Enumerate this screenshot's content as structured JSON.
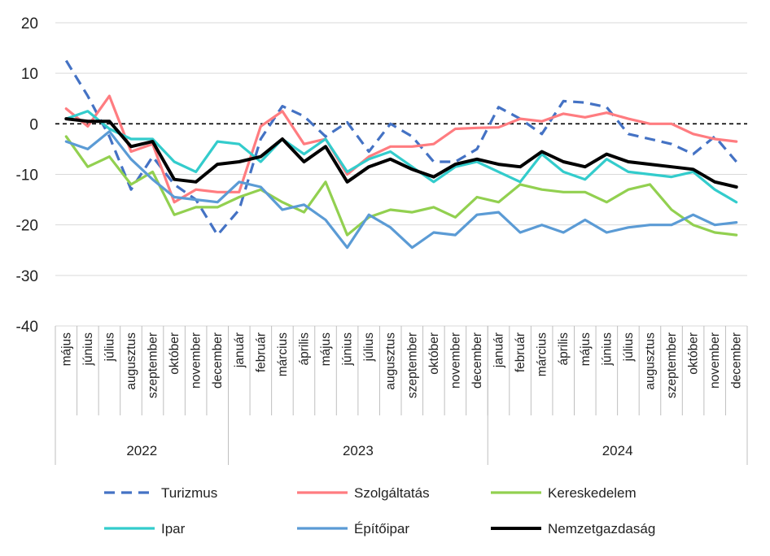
{
  "chart_data": {
    "type": "line",
    "title": "",
    "xlabel": "",
    "ylabel": "",
    "ylim": [
      -40,
      20
    ],
    "yticks": [
      "20",
      "10",
      "0",
      "-10",
      "-20",
      "-30",
      "-40"
    ],
    "grid": "horizontal",
    "reference_line": 0,
    "legend_position": "bottom",
    "categories": [
      "május",
      "június",
      "július",
      "augusztus",
      "szeptember",
      "október",
      "november",
      "december",
      "január",
      "február",
      "március",
      "április",
      "május",
      "június",
      "július",
      "augusztus",
      "szeptember",
      "október",
      "november",
      "december",
      "január",
      "február",
      "március",
      "április",
      "május",
      "június",
      "július",
      "augusztus",
      "szeptember",
      "október",
      "november",
      "december"
    ],
    "years": [
      {
        "label": "2022",
        "start": 0,
        "end": 7
      },
      {
        "label": "2023",
        "start": 8,
        "end": 19
      },
      {
        "label": "2024",
        "start": 20,
        "end": 31
      }
    ],
    "series": [
      {
        "name": "Turizmus",
        "color": "#4472c4",
        "dash": true,
        "values": [
          12.5,
          5.5,
          -2.5,
          -13,
          -6.5,
          -12,
          -15,
          -22,
          -17,
          -3,
          3.5,
          1.5,
          -2.5,
          0.3,
          -5.5,
          0,
          -2.5,
          -7.5,
          -7.5,
          -5,
          3.3,
          1,
          -2,
          4.5,
          4.2,
          3.3,
          -2,
          -3,
          -4,
          -6,
          -2.5,
          -7.5
        ]
      },
      {
        "name": "Szolgáltatás",
        "color": "#ff7c80",
        "dash": false,
        "values": [
          3,
          -0.5,
          5.5,
          -5.5,
          -4,
          -15.5,
          -13,
          -13.5,
          -13.5,
          -0.5,
          2.5,
          -4,
          -3,
          -10,
          -6.5,
          -4.5,
          -4.5,
          -4,
          -1,
          -0.8,
          -0.7,
          1,
          0.5,
          2,
          1.3,
          2.2,
          1,
          0,
          0,
          -2,
          -3,
          -3.5
        ]
      },
      {
        "name": "Kereskedelem",
        "color": "#92d050",
        "dash": false,
        "values": [
          -2.5,
          -8.5,
          -6.5,
          -12,
          -9.5,
          -18,
          -16.5,
          -16.5,
          -14.5,
          -13,
          -15.5,
          -17.5,
          -11.5,
          -22,
          -18.5,
          -17,
          -17.5,
          -16.5,
          -18.5,
          -14.5,
          -15.5,
          -12,
          -13,
          -13.5,
          -13.5,
          -15.5,
          -13,
          -12,
          -17,
          -20,
          -21.5,
          -22
        ]
      },
      {
        "name": "Ipar",
        "color": "#33cccc",
        "dash": false,
        "values": [
          1,
          2.5,
          -1,
          -3,
          -3,
          -7.5,
          -9.5,
          -3.5,
          -4,
          -7.5,
          -3,
          -6,
          -3,
          -9.5,
          -7,
          -5.5,
          -8.5,
          -11.5,
          -8.5,
          -7.5,
          -9.5,
          -11.5,
          -6,
          -9.5,
          -11,
          -7,
          -9.5,
          -10,
          -10.5,
          -9.5,
          -13,
          -15.5
        ]
      },
      {
        "name": "Építőipar",
        "color": "#5b9bd5",
        "dash": false,
        "values": [
          -3.5,
          -5,
          -1.5,
          -7,
          -11,
          -14.5,
          -15,
          -15.5,
          -11.5,
          -12.5,
          -17,
          -16,
          -19,
          -24.5,
          -18,
          -20.5,
          -24.5,
          -21.5,
          -22,
          -18,
          -17.5,
          -21.5,
          -20,
          -21.5,
          -19,
          -21.5,
          -20.5,
          -20,
          -20,
          -18,
          -20,
          -19.5
        ]
      },
      {
        "name": "Nemzetgazdaság",
        "color": "#000000",
        "dash": false,
        "values": [
          1,
          0.5,
          0.5,
          -4.5,
          -3.5,
          -11,
          -11.5,
          -8,
          -7.5,
          -6.5,
          -3,
          -7.5,
          -4.5,
          -11.5,
          -8.5,
          -7,
          -9,
          -10.5,
          -8,
          -7,
          -8,
          -8.5,
          -5.5,
          -7.5,
          -8.5,
          -6,
          -7.5,
          -8,
          -8.5,
          -9,
          -11.5,
          -12.5
        ]
      }
    ]
  }
}
